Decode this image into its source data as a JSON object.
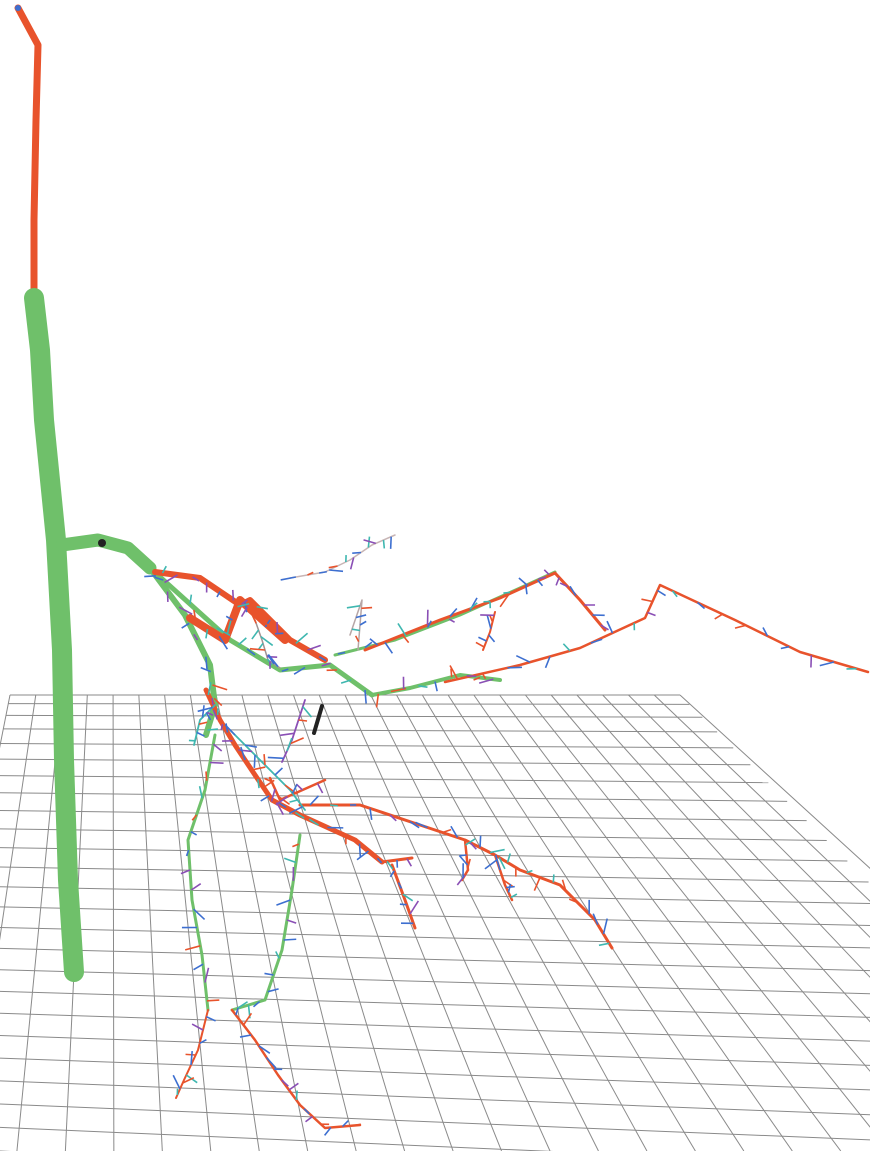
{
  "scene": {
    "subject": "3d-root-system-skeleton",
    "colors": {
      "background": "#ffffff",
      "grid": "#8a8a8a",
      "green": "#6fc06a",
      "red": "#e8532c",
      "blue": "#3d6fd0",
      "teal": "#3fb7b0",
      "purple": "#8a4fb5",
      "black": "#222222"
    }
  }
}
